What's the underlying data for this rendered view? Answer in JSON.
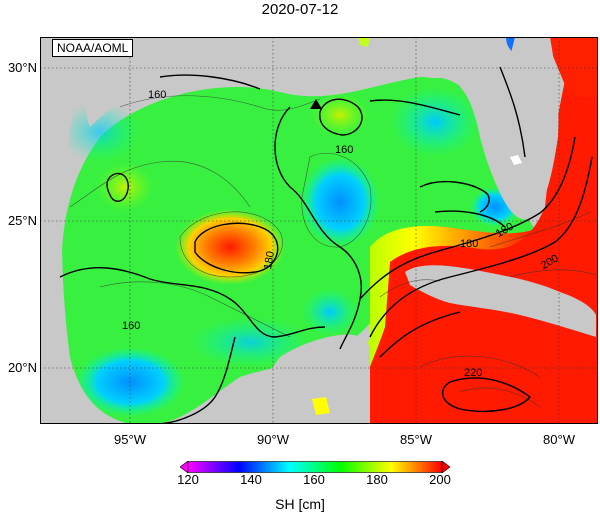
{
  "title": "2020-07-12",
  "credit": "NOAA/AOML",
  "map": {
    "region": "Gulf of Mexico",
    "variable": "SH",
    "unit": "cm",
    "lat_range": [
      18,
      31
    ],
    "lon_range": [
      -98,
      -77
    ],
    "land_color": "#c8c8c8",
    "lon_ticks": [
      {
        "value": -95,
        "label": "95°W"
      },
      {
        "value": -90,
        "label": "90°W"
      },
      {
        "value": -85,
        "label": "85°W"
      },
      {
        "value": -80,
        "label": "80°W"
      }
    ],
    "lat_ticks": [
      {
        "value": 30,
        "label": "30°N"
      },
      {
        "value": 25,
        "label": "25°N"
      },
      {
        "value": 20,
        "label": "20°N"
      }
    ],
    "contour_labels": [
      "160",
      "160",
      "160",
      "180",
      "180",
      "180",
      "200",
      "220"
    ],
    "marker": "triangle-marker"
  },
  "colorbar": {
    "ticks": [
      "120",
      "140",
      "160",
      "180",
      "200"
    ],
    "label": "SH [cm]",
    "colors": [
      "#ff00ff",
      "#8000ff",
      "#0000ff",
      "#0080ff",
      "#00ffff",
      "#00ff80",
      "#00ff00",
      "#80ff00",
      "#ffff00",
      "#ff8000",
      "#ff0000"
    ]
  }
}
